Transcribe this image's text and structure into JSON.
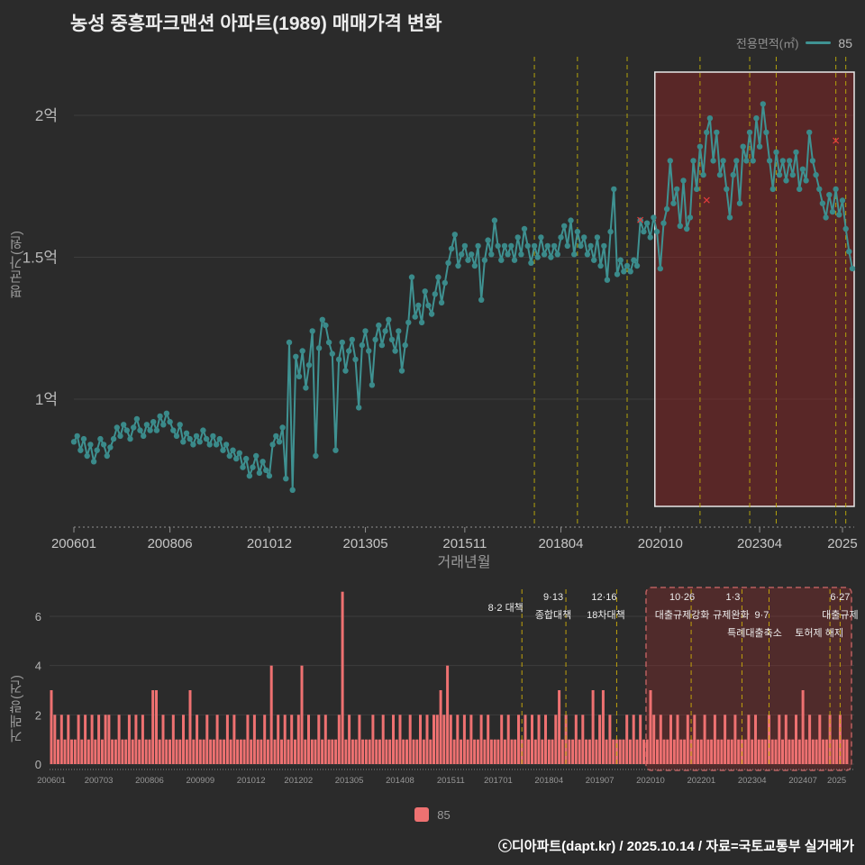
{
  "title": "농성 중흥파크맨션 아파트(1989) 매매가격 변화",
  "legend_top": {
    "label": "전용면적(㎡)",
    "series": "85"
  },
  "legend_bottom": {
    "series": "85"
  },
  "footer": "ⓒ디아파트(dapt.kr) / 2025.10.14 / 자료=국토교통부 실거래가",
  "colors": {
    "background": "#2b2b2b",
    "line": "#3f9292",
    "bar": "#ee7171",
    "policy_line": "#b3a30b",
    "highlight_fill": "rgba(152,34,34,0.42)",
    "highlight_border": "#e8e8e8",
    "cancel_mark": "#e23b3b",
    "grid": "#3d3d3d"
  },
  "chart_data": [
    {
      "type": "line",
      "title": "매매가격 변화",
      "xlabel": "거래년월",
      "ylabel": "평균가(원)",
      "series_name": "85",
      "start_month": "200601",
      "ylim": [
        0.6,
        2.2
      ],
      "grid": true,
      "legend_position": "top-right",
      "yticks": [
        {
          "v": 1.0,
          "label": "1억"
        },
        {
          "v": 1.5,
          "label": "1.5억"
        },
        {
          "v": 2.0,
          "label": "2억"
        }
      ],
      "xticks": [
        "200601",
        "200806",
        "201012",
        "201305",
        "201511",
        "201804",
        "202010",
        "202304",
        "2025"
      ],
      "highlight_range": [
        "202010",
        "202508"
      ],
      "x_marks": [
        {
          "month": "202004",
          "value": 1.63
        },
        {
          "month": "202112",
          "value": 1.7
        },
        {
          "month": "202503",
          "value": 1.91
        }
      ],
      "values": [
        0.85,
        0.87,
        0.82,
        0.86,
        0.8,
        0.84,
        0.78,
        0.82,
        0.86,
        0.84,
        0.8,
        0.83,
        0.86,
        0.9,
        0.87,
        0.91,
        0.89,
        0.86,
        0.9,
        0.93,
        0.89,
        0.87,
        0.91,
        0.89,
        0.92,
        0.89,
        0.94,
        0.91,
        0.95,
        0.92,
        0.89,
        0.87,
        0.91,
        0.85,
        0.88,
        0.86,
        0.84,
        0.87,
        0.85,
        0.89,
        0.86,
        0.84,
        0.87,
        0.84,
        0.86,
        0.82,
        0.84,
        0.8,
        0.82,
        0.79,
        0.81,
        0.76,
        0.79,
        0.73,
        0.76,
        0.8,
        0.74,
        0.78,
        0.75,
        0.73,
        0.84,
        0.87,
        0.85,
        0.9,
        0.72,
        1.2,
        0.68,
        1.15,
        1.08,
        1.17,
        1.04,
        1.12,
        1.24,
        0.8,
        1.18,
        1.28,
        1.26,
        1.2,
        1.16,
        0.82,
        1.14,
        1.2,
        1.1,
        1.17,
        1.21,
        1.14,
        0.97,
        1.19,
        1.24,
        1.17,
        1.05,
        1.21,
        1.26,
        1.19,
        1.24,
        1.28,
        1.21,
        1.17,
        1.24,
        1.1,
        1.19,
        1.27,
        1.43,
        1.29,
        1.33,
        1.27,
        1.38,
        1.33,
        1.3,
        1.37,
        1.43,
        1.34,
        1.41,
        1.48,
        1.53,
        1.58,
        1.47,
        1.51,
        1.54,
        1.49,
        1.51,
        1.47,
        1.54,
        1.35,
        1.49,
        1.56,
        1.51,
        1.63,
        1.54,
        1.49,
        1.54,
        1.51,
        1.54,
        1.49,
        1.57,
        1.51,
        1.6,
        1.54,
        1.48,
        1.54,
        1.5,
        1.57,
        1.51,
        1.54,
        1.5,
        1.54,
        1.51,
        1.57,
        1.61,
        1.54,
        1.63,
        1.51,
        1.59,
        1.54,
        1.57,
        1.51,
        1.54,
        1.49,
        1.57,
        1.47,
        1.54,
        1.42,
        1.59,
        1.74,
        1.44,
        1.49,
        1.45,
        1.47,
        1.45,
        1.49,
        1.47,
        1.63,
        1.59,
        1.62,
        1.57,
        1.64,
        1.59,
        1.46,
        1.62,
        1.67,
        1.84,
        1.69,
        1.74,
        1.61,
        1.77,
        1.6,
        1.64,
        1.84,
        1.74,
        1.89,
        1.79,
        1.94,
        1.99,
        1.84,
        1.94,
        1.79,
        1.84,
        1.74,
        1.64,
        1.79,
        1.84,
        1.69,
        1.89,
        1.84,
        1.94,
        1.84,
        1.99,
        1.89,
        2.04,
        1.94,
        1.84,
        1.74,
        1.87,
        1.79,
        1.84,
        1.77,
        1.84,
        1.79,
        1.87,
        1.74,
        1.81,
        1.77,
        1.94,
        1.84,
        1.79,
        1.74,
        1.69,
        1.64,
        1.72,
        1.66,
        1.74,
        1.65,
        1.7,
        1.6,
        1.52,
        1.46
      ]
    },
    {
      "type": "bar",
      "title": "거래량",
      "xlabel": "",
      "ylabel": "거래량(건)",
      "series_name": "85",
      "start_month": "200601",
      "ylim": [
        0,
        7.2
      ],
      "grid": true,
      "yticks": [
        0,
        2,
        4,
        6
      ],
      "xticks": [
        "200601",
        "200703",
        "200806",
        "200909",
        "201012",
        "201202",
        "201305",
        "201408",
        "201511",
        "201701",
        "201804",
        "201907",
        "202010",
        "202201",
        "202304",
        "202407",
        "2025"
      ],
      "highlight_range": [
        "202010",
        "202508"
      ],
      "policies": [
        {
          "month": "201708",
          "lines": [
            {
              "text": "8·2 대책",
              "row": 1.6,
              "dx": -18
            }
          ]
        },
        {
          "month": "201809",
          "lines": [
            {
              "text": "9·13",
              "row": 1,
              "dx": -14
            },
            {
              "text": "종합대책",
              "row": 2,
              "dx": -14
            }
          ]
        },
        {
          "month": "201912",
          "lines": [
            {
              "text": "12·16",
              "row": 1,
              "dx": -14
            },
            {
              "text": "18차대책",
              "row": 2,
              "dx": -12
            }
          ]
        },
        {
          "month": "202110",
          "lines": [
            {
              "text": "10·26",
              "row": 1,
              "dx": -10
            },
            {
              "text": "대출규제강화",
              "row": 2,
              "dx": -10
            }
          ]
        },
        {
          "month": "202301",
          "lines": [
            {
              "text": "1·3",
              "row": 1,
              "dx": -10
            },
            {
              "text": "규제완화",
              "row": 2,
              "dx": -12
            }
          ]
        },
        {
          "month": "202309",
          "lines": [
            {
              "text": "9·7",
              "row": 2,
              "dx": -8
            },
            {
              "text": "특례대출축소",
              "row": 3,
              "dx": -16
            }
          ]
        },
        {
          "month": "202503",
          "lines": [
            {
              "text": "토허제 해제",
              "row": 3,
              "dx": -12
            }
          ]
        },
        {
          "month": "202506",
          "lines": [
            {
              "text": "6·27",
              "row": 1,
              "dx": 0
            },
            {
              "text": "대출규제",
              "row": 2,
              "dx": 0
            }
          ]
        }
      ],
      "values": [
        3,
        2,
        1,
        2,
        1,
        2,
        1,
        1,
        2,
        1,
        2,
        1,
        2,
        1,
        2,
        1,
        2,
        2,
        1,
        1,
        2,
        1,
        1,
        2,
        1,
        2,
        1,
        2,
        1,
        1,
        3,
        3,
        1,
        2,
        1,
        1,
        2,
        1,
        1,
        2,
        1,
        3,
        1,
        2,
        1,
        1,
        2,
        1,
        1,
        2,
        1,
        1,
        2,
        1,
        2,
        1,
        1,
        1,
        2,
        1,
        2,
        1,
        1,
        2,
        1,
        4,
        1,
        2,
        1,
        2,
        1,
        2,
        1,
        2,
        4,
        1,
        2,
        1,
        1,
        2,
        1,
        2,
        1,
        1,
        1,
        2,
        7,
        1,
        2,
        1,
        1,
        2,
        1,
        1,
        1,
        2,
        1,
        1,
        2,
        1,
        1,
        2,
        1,
        2,
        1,
        1,
        2,
        1,
        1,
        2,
        1,
        2,
        1,
        2,
        2,
        3,
        2,
        4,
        2,
        1,
        2,
        1,
        2,
        1,
        2,
        1,
        1,
        2,
        1,
        2,
        1,
        1,
        1,
        2,
        1,
        2,
        1,
        1,
        2,
        1,
        2,
        1,
        2,
        1,
        2,
        1,
        2,
        1,
        1,
        2,
        3,
        1,
        2,
        1,
        1,
        2,
        1,
        2,
        1,
        1,
        3,
        1,
        2,
        3,
        1,
        2,
        1,
        1,
        1,
        1,
        2,
        1,
        2,
        1,
        2,
        1,
        1,
        3,
        2,
        1,
        2,
        1,
        1,
        2,
        1,
        2,
        1,
        1,
        2,
        1,
        2,
        1,
        1,
        2,
        1,
        1,
        2,
        1,
        1,
        2,
        1,
        1,
        2,
        1,
        1,
        1,
        2,
        1,
        2,
        1,
        1,
        1,
        2,
        1,
        1,
        2,
        1,
        2,
        1,
        1,
        2,
        1,
        3,
        1,
        2,
        1,
        1,
        2,
        1,
        1,
        2,
        1,
        1,
        2,
        1,
        1
      ]
    }
  ]
}
